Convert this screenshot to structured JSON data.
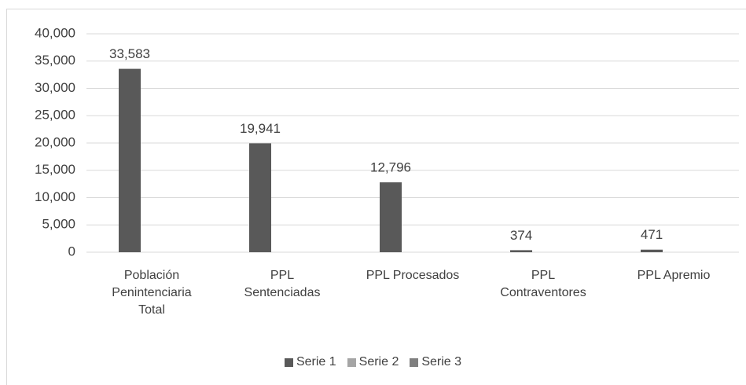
{
  "chart_data": {
    "type": "bar",
    "categories": [
      "Población Penintenciaria Total",
      "PPL Sentenciadas",
      "PPL Procesados",
      "PPL Contraventores",
      "PPL Apremio"
    ],
    "series": [
      {
        "name": "Serie 1",
        "color": "#595959",
        "values": [
          33583,
          19941,
          12796,
          374,
          471
        ],
        "value_labels": [
          "33,583",
          "19,941",
          "12,796",
          "374",
          "471"
        ]
      },
      {
        "name": "Serie 2",
        "color": "#a5a5a5",
        "values": [
          null,
          null,
          null,
          null,
          null
        ]
      },
      {
        "name": "Serie 3",
        "color": "#7f7f7f",
        "values": [
          null,
          null,
          null,
          null,
          null
        ]
      }
    ],
    "ylim": [
      0,
      40000
    ],
    "yticks": [
      0,
      {
        "value": 5000,
        "label": "5,000"
      },
      {
        "value": 10000,
        "label": "10,000"
      },
      {
        "value": 15000,
        "label": "15,000"
      },
      {
        "value": 20000,
        "label": "20,000"
      },
      {
        "value": 25000,
        "label": "25,000"
      },
      {
        "value": 30000,
        "label": "30,000"
      },
      {
        "value": 35000,
        "label": "35,000"
      },
      {
        "value": 40000,
        "label": "40,000"
      }
    ],
    "grid": true,
    "legend": "bottom"
  }
}
